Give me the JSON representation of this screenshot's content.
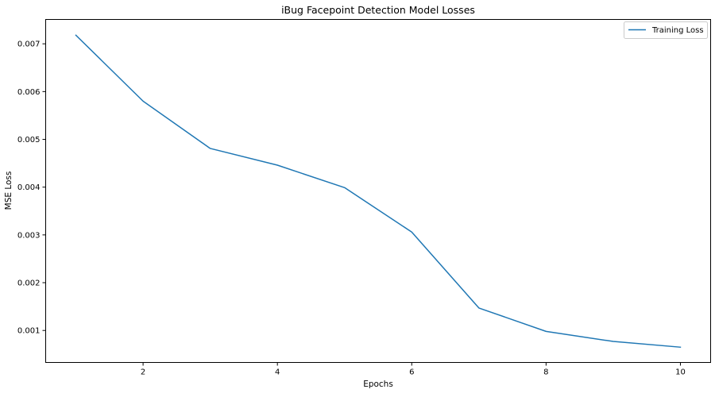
{
  "chart_data": {
    "type": "line",
    "title": "iBug Facepoint Detection Model Losses",
    "xlabel": "Epochs",
    "ylabel": "MSE Loss",
    "x": [
      1,
      2,
      3,
      4,
      5,
      6,
      7,
      8,
      9,
      10
    ],
    "series": [
      {
        "name": "Training Loss",
        "color": "#1f77b4",
        "values": [
          0.00718,
          0.0058,
          0.00481,
          0.00446,
          0.00399,
          0.00306,
          0.00147,
          0.00098,
          0.00077,
          0.00065
        ]
      }
    ],
    "xlim": [
      0.55,
      10.45
    ],
    "ylim": [
      0.00033,
      0.00751
    ],
    "xticks": [
      2,
      4,
      6,
      8,
      10
    ],
    "xtick_labels": [
      "2",
      "4",
      "6",
      "8",
      "10"
    ],
    "yticks": [
      0.001,
      0.002,
      0.003,
      0.004,
      0.005,
      0.006,
      0.007
    ],
    "ytick_labels": [
      "0.001",
      "0.002",
      "0.003",
      "0.004",
      "0.005",
      "0.006",
      "0.007"
    ],
    "grid": false,
    "legend_position": "top-right"
  }
}
